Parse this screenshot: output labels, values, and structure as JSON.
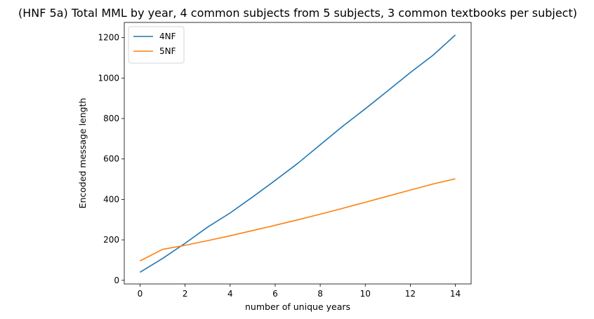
{
  "chart_data": {
    "type": "line",
    "title": "(HNF 5a) Total MML by year, 4 common subjects from 5 subjects, 3 common textbooks per subject)",
    "xlabel": "number of unique years",
    "ylabel": "Encoded message length",
    "xlim": [
      -0.7,
      14.7
    ],
    "ylim": [
      -18,
      1275
    ],
    "xticks": [
      0,
      2,
      4,
      6,
      8,
      10,
      12,
      14
    ],
    "yticks": [
      0,
      200,
      400,
      600,
      800,
      1000,
      1200
    ],
    "legend_position": "top-left",
    "grid": false,
    "x": [
      0,
      1,
      2,
      3,
      4,
      5,
      6,
      7,
      8,
      9,
      10,
      11,
      12,
      13,
      14
    ],
    "series": [
      {
        "name": "4NF",
        "color": "#1f77b4",
        "values": [
          40,
          108,
          183,
          263,
          333,
          412,
          494,
          578,
          670,
          762,
          848,
          937,
          1027,
          1112,
          1213
        ]
      },
      {
        "name": "5NF",
        "color": "#ff7f0e",
        "values": [
          96,
          153,
          173,
          196,
          220,
          246,
          272,
          299,
          327,
          356,
          386,
          416,
          446,
          476,
          502
        ]
      }
    ]
  }
}
